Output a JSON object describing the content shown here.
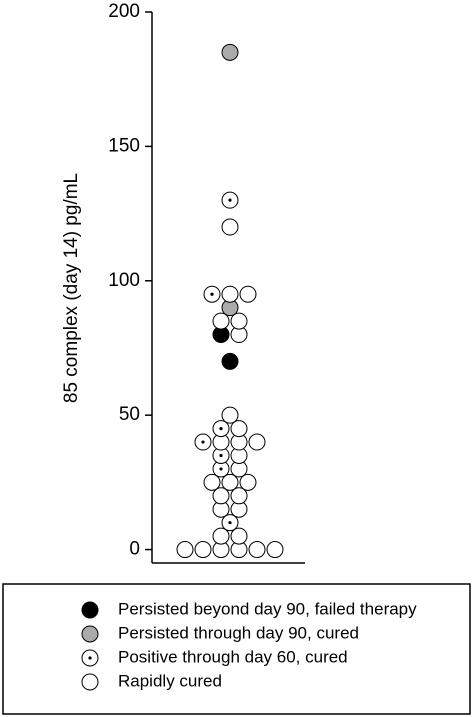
{
  "chart_data": {
    "type": "dot",
    "y_label": "85 complex (day 14) pg/mL",
    "ylim": [
      -5,
      200
    ],
    "yticks": [
      0,
      50,
      100,
      150,
      200
    ],
    "series": [
      {
        "name": "Persisted beyond day 90, failed therapy",
        "color": "#000000",
        "marker": "filled",
        "values": [
          70,
          80
        ]
      },
      {
        "name": "Persisted through day 90, cured",
        "color": "#aaaaaa",
        "marker": "filled",
        "values": [
          90,
          185
        ]
      },
      {
        "name": "Positive through day 60, cured",
        "color": "#ffffff",
        "marker": "dotted",
        "values": [
          10,
          30,
          35,
          40,
          45,
          95,
          130
        ]
      },
      {
        "name": "Rapidly cured",
        "color": "#ffffff",
        "marker": "open",
        "values": [
          0,
          0,
          0,
          0,
          0,
          0,
          5,
          5,
          15,
          15,
          20,
          20,
          25,
          25,
          25,
          30,
          35,
          40,
          40,
          40,
          45,
          50,
          80,
          85,
          85,
          95,
          95,
          120
        ]
      }
    ]
  }
}
